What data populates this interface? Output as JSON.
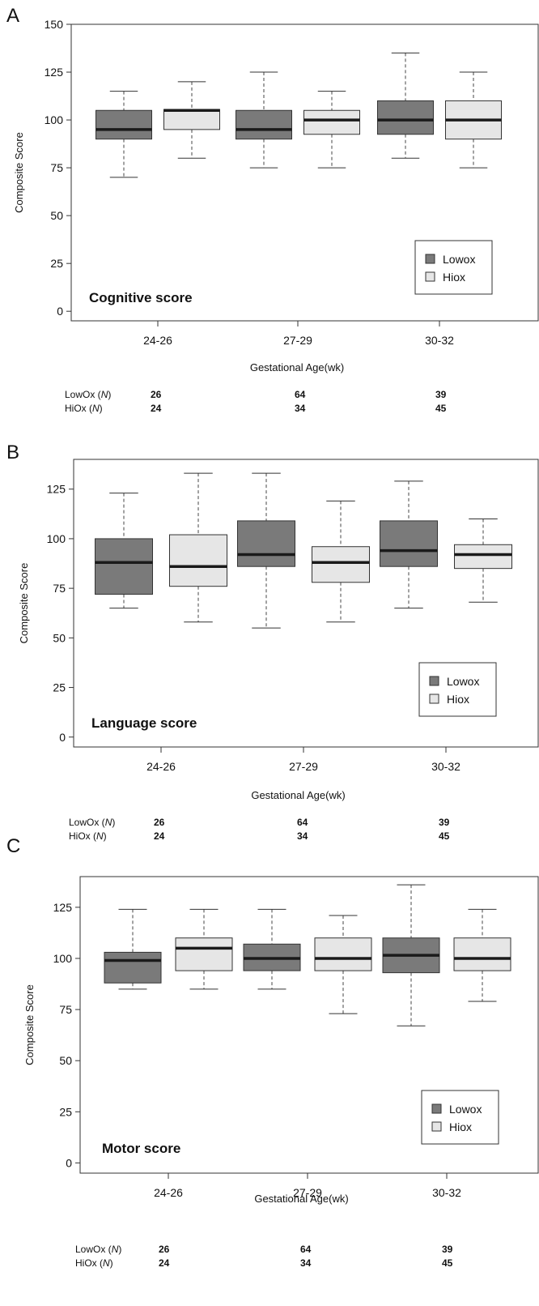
{
  "legend": {
    "lowox_label": "Lowox",
    "hiox_label": "Hiox",
    "lowox_color": "#7a7a7a",
    "hiox_color": "#e6e6e6"
  },
  "n_table": {
    "row_labels": [
      "LowOx (N)",
      "HiOx (N)"
    ],
    "lowox": [
      "26",
      "64",
      "39"
    ],
    "hiox": [
      "24",
      "34",
      "45"
    ]
  },
  "chart_data": [
    {
      "type": "box",
      "panel": "A",
      "score_title": "Cognitive score",
      "xlabel": "Gestational Age(wk)",
      "ylabel": "Composite Score",
      "ylim": [
        -5,
        150
      ],
      "yticks": [
        0,
        25,
        50,
        75,
        100,
        125,
        150
      ],
      "categories": [
        "24-26",
        "27-29",
        "30-32"
      ],
      "series": [
        {
          "name": "Lowox",
          "boxes": [
            {
              "min": 70,
              "q1": 90,
              "median": 95,
              "q3": 105,
              "max": 115
            },
            {
              "min": 75,
              "q1": 90,
              "median": 95,
              "q3": 105,
              "max": 125
            },
            {
              "min": 80,
              "q1": 92.5,
              "median": 100,
              "q3": 110,
              "max": 135
            }
          ]
        },
        {
          "name": "Hiox",
          "boxes": [
            {
              "min": 80,
              "q1": 95,
              "median": 105,
              "q3": 105.5,
              "max": 120
            },
            {
              "min": 75,
              "q1": 92.5,
              "median": 100,
              "q3": 105,
              "max": 115
            },
            {
              "min": 75,
              "q1": 90,
              "median": 100,
              "q3": 110,
              "max": 125
            }
          ]
        }
      ],
      "legend_position": "bottom-right",
      "grid": false
    },
    {
      "type": "box",
      "panel": "B",
      "score_title": "Language score",
      "xlabel": "Gestational Age(wk)",
      "ylabel": "Composite Score",
      "ylim": [
        -5,
        140
      ],
      "yticks": [
        0,
        25,
        50,
        75,
        100,
        125
      ],
      "categories": [
        "24-26",
        "27-29",
        "30-32"
      ],
      "series": [
        {
          "name": "Lowox",
          "boxes": [
            {
              "min": 65,
              "q1": 72,
              "median": 88,
              "q3": 100,
              "max": 123
            },
            {
              "min": 55,
              "q1": 86,
              "median": 92,
              "q3": 109,
              "max": 133
            },
            {
              "min": 65,
              "q1": 86,
              "median": 94,
              "q3": 109,
              "max": 129
            }
          ]
        },
        {
          "name": "Hiox",
          "boxes": [
            {
              "min": 58,
              "q1": 76,
              "median": 86,
              "q3": 102,
              "max": 133
            },
            {
              "min": 58,
              "q1": 78,
              "median": 88,
              "q3": 96,
              "max": 119
            },
            {
              "min": 68,
              "q1": 85,
              "median": 92,
              "q3": 97,
              "max": 110
            }
          ]
        }
      ],
      "legend_position": "bottom-right",
      "grid": false
    },
    {
      "type": "box",
      "panel": "C",
      "score_title": "Motor score",
      "xlabel": "Gestational Age(wk)",
      "ylabel": "Composite Score",
      "ylim": [
        -5,
        140
      ],
      "yticks": [
        0,
        25,
        50,
        75,
        100,
        125
      ],
      "categories": [
        "24-26",
        "27-29",
        "30-32"
      ],
      "series": [
        {
          "name": "Lowox",
          "boxes": [
            {
              "min": 85,
              "q1": 88,
              "median": 99,
              "q3": 103,
              "max": 124
            },
            {
              "min": 85,
              "q1": 94,
              "median": 100,
              "q3": 107,
              "max": 124
            },
            {
              "min": 67,
              "q1": 93,
              "median": 101.5,
              "q3": 110,
              "max": 136
            }
          ]
        },
        {
          "name": "Hiox",
          "boxes": [
            {
              "min": 85,
              "q1": 94,
              "median": 105,
              "q3": 110,
              "max": 124
            },
            {
              "min": 73,
              "q1": 94,
              "median": 100,
              "q3": 110,
              "max": 121
            },
            {
              "min": 79,
              "q1": 94,
              "median": 100,
              "q3": 110,
              "max": 124
            }
          ]
        }
      ],
      "legend_position": "bottom-right",
      "grid": false
    }
  ]
}
